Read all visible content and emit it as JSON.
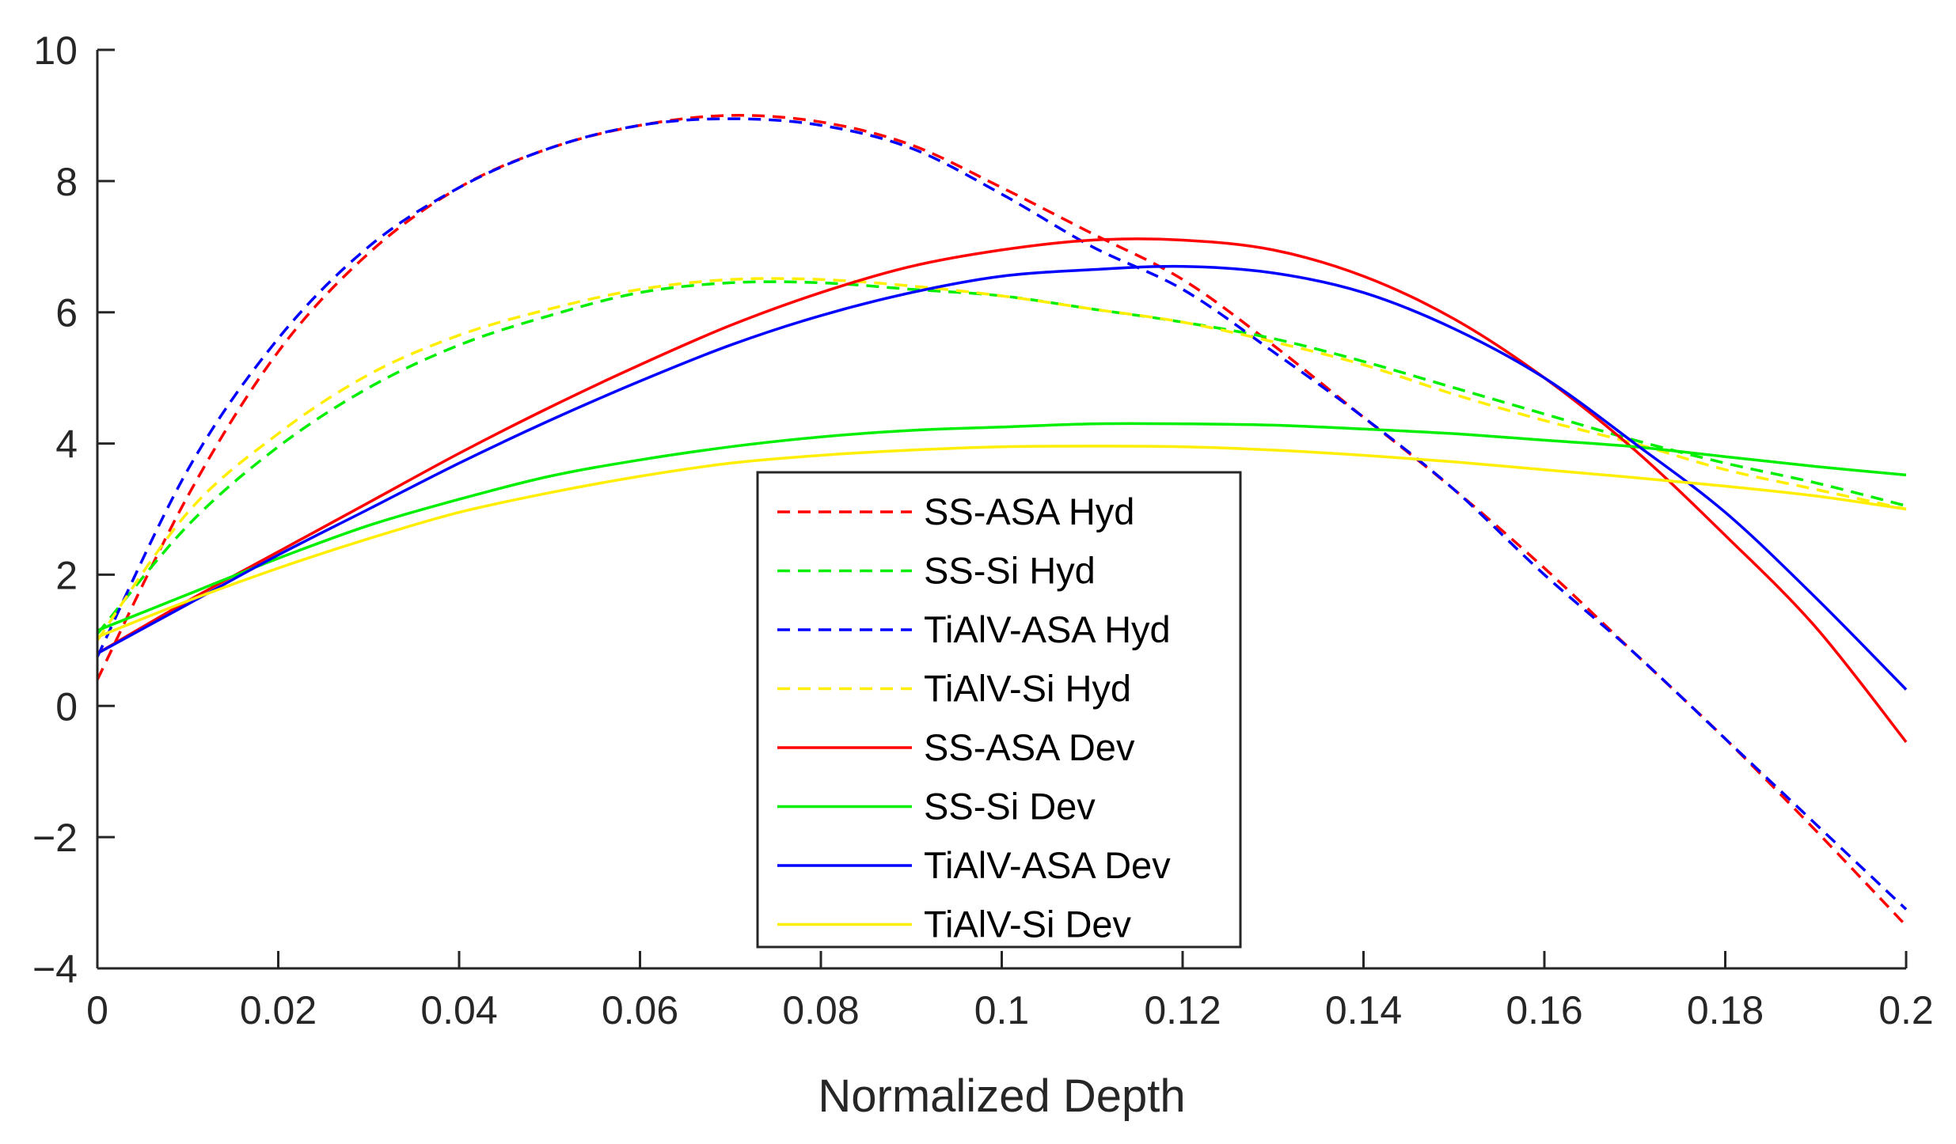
{
  "chart_data": {
    "type": "line",
    "title": "",
    "xlabel": "Normalized Depth",
    "ylabel": "",
    "xlim": [
      0,
      0.2
    ],
    "ylim": [
      -4,
      10
    ],
    "grid": false,
    "legend_position": "center-bottom",
    "xticks": [
      0,
      0.02,
      0.04,
      0.06,
      0.08,
      0.1,
      0.12,
      0.14,
      0.16,
      0.18,
      0.2
    ],
    "xtick_labels": [
      "0",
      "0.02",
      "0.04",
      "0.06",
      "0.08",
      "0.1",
      "0.12",
      "0.14",
      "0.16",
      "0.18",
      "0.2"
    ],
    "yticks": [
      -4,
      -2,
      0,
      2,
      4,
      6,
      8,
      10
    ],
    "ytick_labels": [
      "−4",
      "−2",
      "0",
      "2",
      "4",
      "6",
      "8",
      "10"
    ],
    "x": [
      0,
      0.01,
      0.02,
      0.03,
      0.04,
      0.05,
      0.06,
      0.07,
      0.08,
      0.09,
      0.1,
      0.11,
      0.12,
      0.13,
      0.14,
      0.15,
      0.16,
      0.17,
      0.18,
      0.19,
      0.2
    ],
    "series": [
      {
        "name": "SS-ASA Hyd",
        "color": "#ff0000",
        "dash": "dashed",
        "values": [
          0.4,
          3.2,
          5.4,
          6.9,
          7.9,
          8.5,
          8.85,
          9.0,
          8.9,
          8.55,
          7.9,
          7.2,
          6.5,
          5.5,
          4.4,
          3.3,
          2.1,
          0.8,
          -0.5,
          -1.9,
          -3.35
        ]
      },
      {
        "name": "SS-Si Hyd",
        "color": "#00ee00",
        "dash": "dashed",
        "values": [
          1.1,
          2.75,
          3.95,
          4.85,
          5.5,
          5.95,
          6.3,
          6.45,
          6.45,
          6.35,
          6.25,
          6.05,
          5.85,
          5.6,
          5.25,
          4.85,
          4.45,
          4.05,
          3.7,
          3.4,
          3.05
        ]
      },
      {
        "name": "TiAlV-ASA Hyd",
        "color": "#0000ff",
        "dash": "dashed",
        "values": [
          0.75,
          3.6,
          5.6,
          7.0,
          7.9,
          8.5,
          8.85,
          8.95,
          8.85,
          8.5,
          7.8,
          7.0,
          6.35,
          5.4,
          4.4,
          3.3,
          2.0,
          0.8,
          -0.5,
          -1.8,
          -3.1
        ]
      },
      {
        "name": "TiAlV-Si Hyd",
        "color": "#ffee00",
        "dash": "dashed",
        "values": [
          1.0,
          2.95,
          4.15,
          5.05,
          5.65,
          6.05,
          6.35,
          6.5,
          6.5,
          6.4,
          6.25,
          6.05,
          5.85,
          5.55,
          5.2,
          4.75,
          4.35,
          4.0,
          3.6,
          3.3,
          3.0
        ]
      },
      {
        "name": "SS-ASA Dev",
        "color": "#ff0000",
        "dash": "solid",
        "values": [
          0.8,
          1.6,
          2.35,
          3.1,
          3.85,
          4.55,
          5.2,
          5.8,
          6.3,
          6.7,
          6.95,
          7.1,
          7.1,
          6.95,
          6.55,
          5.9,
          5.0,
          3.9,
          2.6,
          1.2,
          -0.55
        ]
      },
      {
        "name": "SS-Si Dev",
        "color": "#00ee00",
        "dash": "solid",
        "values": [
          1.15,
          1.7,
          2.25,
          2.75,
          3.15,
          3.5,
          3.75,
          3.95,
          4.1,
          4.2,
          4.25,
          4.3,
          4.3,
          4.28,
          4.22,
          4.15,
          4.05,
          3.95,
          3.8,
          3.65,
          3.52
        ]
      },
      {
        "name": "TiAlV-ASA Dev",
        "color": "#0000ff",
        "dash": "solid",
        "values": [
          0.8,
          1.55,
          2.3,
          3.0,
          3.7,
          4.35,
          4.95,
          5.5,
          5.95,
          6.3,
          6.55,
          6.65,
          6.7,
          6.6,
          6.3,
          5.75,
          5.0,
          4.0,
          2.95,
          1.65,
          0.25
        ]
      },
      {
        "name": "TiAlV-Si Dev",
        "color": "#ffee00",
        "dash": "solid",
        "values": [
          1.05,
          1.6,
          2.1,
          2.55,
          2.95,
          3.25,
          3.5,
          3.7,
          3.82,
          3.9,
          3.95,
          3.96,
          3.95,
          3.9,
          3.82,
          3.72,
          3.6,
          3.48,
          3.35,
          3.2,
          3.0
        ]
      }
    ]
  }
}
